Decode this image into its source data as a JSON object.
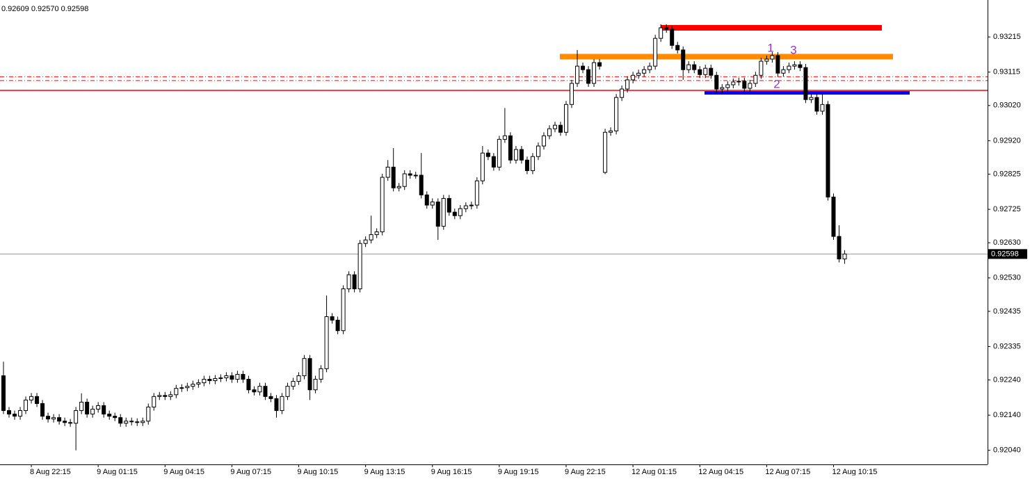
{
  "chart_data": {
    "type": "candlestick",
    "header": "0.92609 0.92570 0.92598",
    "categories": [
      null,
      null,
      null,
      null,
      null,
      "8 Aug 22:15",
      null,
      null,
      null,
      null,
      null,
      null,
      null,
      null,
      null,
      null,
      null,
      "9 Aug 01:15",
      null,
      null,
      null,
      null,
      null,
      null,
      null,
      null,
      null,
      null,
      null,
      "9 Aug 04:15",
      null,
      null,
      null,
      null,
      null,
      null,
      null,
      null,
      null,
      null,
      null,
      "9 Aug 07:15",
      null,
      null,
      null,
      null,
      null,
      null,
      null,
      null,
      null,
      null,
      null,
      "9 Aug 10:15",
      null,
      null,
      null,
      null,
      null,
      null,
      null,
      null,
      null,
      null,
      null,
      "9 Aug 13:15",
      null,
      null,
      null,
      null,
      null,
      null,
      null,
      null,
      null,
      null,
      null,
      "9 Aug 16:15",
      null,
      null,
      null,
      null,
      null,
      null,
      null,
      null,
      null,
      null,
      null,
      "9 Aug 19:15",
      null,
      null,
      null,
      null,
      null,
      null,
      null,
      null,
      null,
      null,
      null,
      "9 Aug 22:15",
      null,
      null,
      null,
      null,
      null,
      null,
      null,
      null,
      null,
      null,
      null,
      "12 Aug 01:15",
      null,
      null,
      null,
      null,
      null,
      null,
      null,
      null,
      null,
      null,
      null,
      "12 Aug 04:15",
      null,
      null,
      null,
      null,
      null,
      null,
      null,
      null,
      null,
      null,
      null,
      "12 Aug 07:15",
      null,
      null,
      null,
      null,
      null,
      null,
      null,
      null,
      null,
      null,
      null,
      "12 Aug 10:15",
      null,
      null
    ],
    "open": [
      0.92252,
      0.92153,
      0.92143,
      0.92137,
      0.92153,
      0.92183,
      0.92193,
      0.92173,
      0.92137,
      0.92129,
      0.92133,
      0.92123,
      0.92119,
      0.92117,
      0.92153,
      0.92177,
      0.92143,
      0.92157,
      0.92167,
      0.92143,
      0.92137,
      0.92133,
      0.92117,
      0.92123,
      0.92121,
      0.92119,
      0.92123,
      0.92163,
      0.92193,
      0.92196,
      0.92193,
      0.92198,
      0.92216,
      0.92218,
      0.92222,
      0.92228,
      0.92232,
      0.92242,
      0.92238,
      0.92244,
      0.92246,
      0.92252,
      0.92242,
      0.92256,
      0.92242,
      0.92212,
      0.92206,
      0.92222,
      0.92193,
      0.92187,
      0.92153,
      0.92193,
      0.92222,
      0.92236,
      0.92252,
      0.92301,
      0.92212,
      0.92242,
      0.92272,
      0.9242,
      0.9241,
      0.9238,
      0.92499,
      0.92539,
      0.92499,
      0.92628,
      0.92638,
      0.92653,
      0.92661,
      0.92816,
      0.92845,
      0.92786,
      0.9279,
      0.92826,
      0.92822,
      0.92822,
      0.92766,
      0.92737,
      0.92746,
      0.92677,
      0.92756,
      0.92717,
      0.92707,
      0.92727,
      0.92735,
      0.92737,
      0.92806,
      0.92885,
      0.92875,
      0.92845,
      0.92924,
      0.92934,
      0.92865,
      0.92895,
      0.92865,
      0.92835,
      0.92875,
      0.92905,
      0.92934,
      0.92954,
      0.92964,
      0.92944,
      0.93023,
      0.93083,
      0.93132,
      0.93122,
      0.93083,
      0.93142,
      0.9283,
      0.92944,
      0.92948,
      0.93043,
      0.93067,
      0.93093,
      0.93106,
      0.93112,
      0.93122,
      0.93132,
      0.93211,
      0.93241,
      0.93237,
      0.93191,
      0.93178,
      0.93122,
      0.93136,
      0.93122,
      0.93108,
      0.93126,
      0.93106,
      0.93067,
      0.93071,
      0.93079,
      0.93087,
      0.93089,
      0.93069,
      0.93083,
      0.93106,
      0.93146,
      0.93152,
      0.93162,
      0.93112,
      0.93122,
      0.93132,
      0.93136,
      0.93128,
      0.93037,
      0.93043,
      0.93004,
      0.93023,
      0.9276,
      0.92648,
      0.92584
    ],
    "high": [
      0.92292,
      0.92163,
      0.92153,
      0.92163,
      0.92193,
      0.92203,
      0.92203,
      0.92183,
      0.92147,
      0.92143,
      0.92143,
      0.92133,
      0.92129,
      0.92163,
      0.92202,
      0.92187,
      0.92167,
      0.92177,
      0.92177,
      0.92153,
      0.92147,
      0.92143,
      0.92133,
      0.92133,
      0.92131,
      0.92133,
      0.92173,
      0.92203,
      0.92206,
      0.92206,
      0.92208,
      0.92226,
      0.92228,
      0.92232,
      0.92238,
      0.92242,
      0.92252,
      0.92252,
      0.92254,
      0.92256,
      0.92262,
      0.92262,
      0.92266,
      0.92266,
      0.92252,
      0.92222,
      0.92232,
      0.92232,
      0.92203,
      0.92197,
      0.92203,
      0.92232,
      0.92246,
      0.92262,
      0.92311,
      0.92311,
      0.92252,
      0.92282,
      0.9248,
      0.9243,
      0.9242,
      0.92509,
      0.92549,
      0.92549,
      0.92638,
      0.92648,
      0.92707,
      0.92671,
      0.92826,
      0.92865,
      0.92899,
      0.928,
      0.92836,
      0.92836,
      0.92832,
      0.92885,
      0.92776,
      0.92756,
      0.92756,
      0.92766,
      0.92766,
      0.92727,
      0.92737,
      0.92745,
      0.92747,
      0.92816,
      0.92905,
      0.92895,
      0.92885,
      0.92934,
      0.93013,
      0.92944,
      0.92905,
      0.92905,
      0.92875,
      0.92885,
      0.92915,
      0.92944,
      0.92964,
      0.92974,
      0.92974,
      0.93033,
      0.93093,
      0.93178,
      0.93142,
      0.93132,
      0.93152,
      0.93152,
      0.92954,
      0.92958,
      0.93053,
      0.93077,
      0.93103,
      0.93116,
      0.93122,
      0.93132,
      0.93142,
      0.93221,
      0.93251,
      0.93251,
      0.93247,
      0.93201,
      0.93188,
      0.93146,
      0.93146,
      0.93132,
      0.93136,
      0.93136,
      0.93116,
      0.93081,
      0.93089,
      0.93097,
      0.93099,
      0.93099,
      0.93093,
      0.93116,
      0.93156,
      0.93162,
      0.93172,
      0.93172,
      0.93132,
      0.93142,
      0.93146,
      0.93146,
      0.93138,
      0.93053,
      0.93053,
      0.93053,
      0.93033,
      0.9277,
      0.9268,
      0.92609
    ],
    "low": [
      0.92143,
      0.92133,
      0.92127,
      0.92127,
      0.92143,
      0.92173,
      0.92163,
      0.92127,
      0.92119,
      0.92119,
      0.92113,
      0.92109,
      0.92107,
      0.9204,
      0.92143,
      0.92133,
      0.92133,
      0.92147,
      0.92133,
      0.92127,
      0.92123,
      0.92107,
      0.92107,
      0.92111,
      0.92109,
      0.92109,
      0.92113,
      0.92153,
      0.92183,
      0.92183,
      0.92183,
      0.92188,
      0.92206,
      0.92208,
      0.92212,
      0.92218,
      0.92222,
      0.92228,
      0.92228,
      0.92234,
      0.92236,
      0.92232,
      0.92232,
      0.92232,
      0.92202,
      0.92196,
      0.92196,
      0.92183,
      0.92177,
      0.92133,
      0.92143,
      0.92183,
      0.92212,
      0.92226,
      0.92242,
      0.92183,
      0.92202,
      0.92232,
      0.92262,
      0.924,
      0.9237,
      0.9237,
      0.92489,
      0.92489,
      0.92489,
      0.92618,
      0.92628,
      0.92643,
      0.92651,
      0.92806,
      0.92776,
      0.92776,
      0.9278,
      0.92812,
      0.92812,
      0.92756,
      0.92727,
      0.92727,
      0.92638,
      0.92667,
      0.92707,
      0.92697,
      0.92697,
      0.92717,
      0.92725,
      0.92727,
      0.92796,
      0.92865,
      0.92835,
      0.92835,
      0.92914,
      0.92855,
      0.92855,
      0.92855,
      0.92825,
      0.92825,
      0.92865,
      0.92895,
      0.92924,
      0.92944,
      0.92934,
      0.92934,
      0.93013,
      0.93073,
      0.93112,
      0.93073,
      0.93073,
      0.93122,
      0.92825,
      0.92934,
      0.92938,
      0.93033,
      0.93057,
      0.93083,
      0.93096,
      0.93102,
      0.93112,
      0.93122,
      0.93201,
      0.93227,
      0.93181,
      0.93168,
      0.93093,
      0.93112,
      0.93112,
      0.93098,
      0.93098,
      0.93096,
      0.93057,
      0.93057,
      0.93061,
      0.93069,
      0.93077,
      0.93059,
      0.93059,
      0.93073,
      0.93096,
      0.93136,
      0.93142,
      0.93102,
      0.93102,
      0.93112,
      0.93122,
      0.93118,
      0.93027,
      0.93027,
      0.92994,
      0.92994,
      0.9275,
      0.92638,
      0.92574,
      0.9257
    ],
    "close": [
      0.92153,
      0.92143,
      0.92137,
      0.92153,
      0.92183,
      0.92193,
      0.92173,
      0.92137,
      0.92129,
      0.92133,
      0.92123,
      0.92119,
      0.92117,
      0.92153,
      0.92177,
      0.92143,
      0.92157,
      0.92167,
      0.92143,
      0.92137,
      0.92133,
      0.92117,
      0.92123,
      0.92121,
      0.92119,
      0.92123,
      0.92163,
      0.92193,
      0.92196,
      0.92193,
      0.92198,
      0.92216,
      0.92218,
      0.92222,
      0.92228,
      0.92232,
      0.92242,
      0.92238,
      0.92244,
      0.92246,
      0.92252,
      0.92242,
      0.92256,
      0.92242,
      0.92212,
      0.92206,
      0.92222,
      0.92193,
      0.92187,
      0.92153,
      0.92193,
      0.92222,
      0.92236,
      0.92252,
      0.92301,
      0.92212,
      0.92242,
      0.92272,
      0.9242,
      0.9241,
      0.9238,
      0.92499,
      0.92539,
      0.92499,
      0.92628,
      0.92638,
      0.92653,
      0.92661,
      0.92816,
      0.92845,
      0.92786,
      0.9279,
      0.92826,
      0.92822,
      0.92822,
      0.92766,
      0.92737,
      0.92746,
      0.92677,
      0.92756,
      0.92717,
      0.92707,
      0.92727,
      0.92735,
      0.92737,
      0.92806,
      0.92885,
      0.92875,
      0.92845,
      0.92924,
      0.92934,
      0.92865,
      0.92895,
      0.92865,
      0.92835,
      0.92875,
      0.92905,
      0.92934,
      0.92954,
      0.92964,
      0.92944,
      0.93023,
      0.93083,
      0.93132,
      0.93122,
      0.93083,
      0.93142,
      0.93132,
      0.92944,
      0.92948,
      0.93043,
      0.93067,
      0.93093,
      0.93106,
      0.93112,
      0.93122,
      0.93132,
      0.93211,
      0.93241,
      0.93237,
      0.93191,
      0.93178,
      0.93122,
      0.93136,
      0.93122,
      0.93108,
      0.93126,
      0.93106,
      0.93067,
      0.93071,
      0.93079,
      0.93087,
      0.93089,
      0.93069,
      0.93083,
      0.93106,
      0.93146,
      0.93152,
      0.93162,
      0.93112,
      0.93122,
      0.93132,
      0.93136,
      0.93128,
      0.93037,
      0.93043,
      0.93004,
      0.93023,
      0.9276,
      0.92648,
      0.92584,
      0.92598
    ],
    "up_color": "#ffffff",
    "down_color": "#000000",
    "ylim": [
      0.92,
      0.9332
    ],
    "yticks": [
      0.93215,
      0.93115,
      {
        "value": 0.9302,
        "label": "0.93020"
      },
      {
        "value": 0.9292,
        "label": "0.92920"
      },
      0.92825,
      0.92725,
      {
        "value": 0.9263,
        "label": "0.92630"
      },
      {
        "value": 0.9253,
        "label": "0.92530"
      },
      0.92435,
      0.92335,
      {
        "value": 0.9224,
        "label": "0.92240"
      },
      {
        "value": 0.9214,
        "label": "0.92140"
      },
      {
        "value": 0.9204,
        "label": "0.92040"
      }
    ],
    "current_price": 0.92598,
    "horizontal_lines": [
      {
        "value": 0.93063,
        "color": "#ff0000",
        "style": "solid"
      },
      {
        "value": 0.93102,
        "color": "#ff0000",
        "style": "dashdot"
      },
      {
        "value": 0.93091,
        "color": "#ff0000",
        "style": "dashdot"
      }
    ],
    "zones": [
      {
        "value": 0.93241,
        "color": "#ff0000"
      },
      {
        "value": 0.93159,
        "color": "#ff8c00"
      },
      {
        "value": 0.93056,
        "color": "#0000ff"
      }
    ],
    "annotations": [
      {
        "text": "1",
        "color": "#9932cc"
      },
      {
        "text": "2",
        "color": "#9932cc"
      },
      {
        "text": "3",
        "color": "#9932cc"
      }
    ]
  }
}
